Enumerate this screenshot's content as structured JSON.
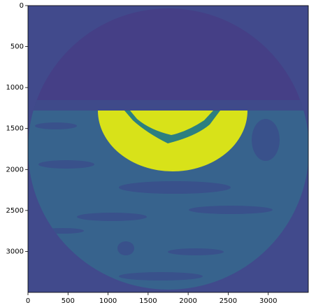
{
  "chart_data": {
    "type": "image",
    "xlim": [
      0,
      3500
    ],
    "ylim": [
      3500,
      0
    ],
    "xticks": [
      0,
      500,
      1000,
      1500,
      2000,
      2500,
      3000
    ],
    "yticks": [
      0,
      500,
      1000,
      1500,
      2000,
      2500,
      3000
    ]
  }
}
